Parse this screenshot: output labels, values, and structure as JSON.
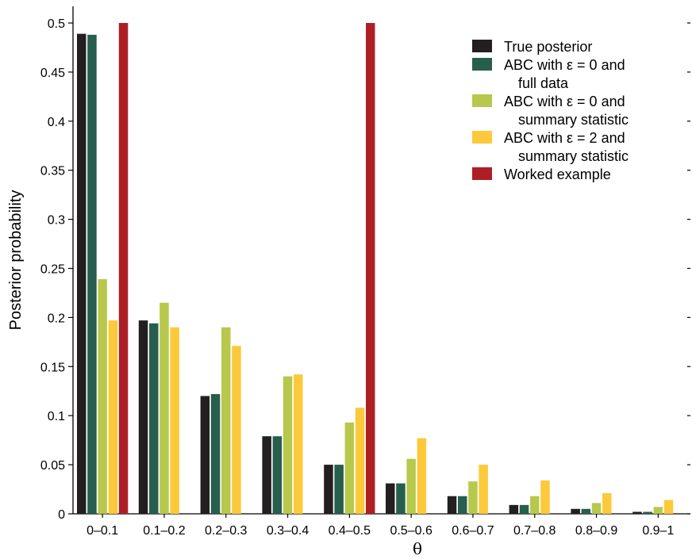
{
  "chart_data": {
    "type": "bar",
    "title": "",
    "xlabel": "θ",
    "ylabel": "Posterior probability",
    "ylim": [
      0,
      0.5
    ],
    "yticks": [
      "0",
      "0.05",
      "0.1",
      "0.15",
      "0.2",
      "0.25",
      "0.3",
      "0.35",
      "0.4",
      "0.45",
      "0.5"
    ],
    "grid": false,
    "legend_position": "top-right",
    "categories": [
      "0–0.1",
      "0.1–0.2",
      "0.2–0.3",
      "0.3–0.4",
      "0.4–0.5",
      "0.5–0.6",
      "0.6–0.7",
      "0.7–0.8",
      "0.8–0.9",
      "0.9–1"
    ],
    "series": [
      {
        "name": "True posterior",
        "color": "#231f20",
        "values": [
          0.489,
          0.197,
          0.12,
          0.079,
          0.05,
          0.031,
          0.018,
          0.009,
          0.005,
          0.002
        ]
      },
      {
        "name": "ABC with ε = 0 and full data",
        "legend_lines": [
          "ABC with ε = 0 and",
          "full data"
        ],
        "color": "#275e4d",
        "values": [
          0.488,
          0.194,
          0.122,
          0.079,
          0.05,
          0.031,
          0.018,
          0.009,
          0.005,
          0.002
        ]
      },
      {
        "name": "ABC with ε = 0 and summary statistic",
        "legend_lines": [
          "ABC with ε = 0 and",
          "summary statistic"
        ],
        "color": "#b7c84d",
        "values": [
          0.239,
          0.215,
          0.19,
          0.14,
          0.093,
          0.056,
          0.033,
          0.018,
          0.011,
          0.007
        ]
      },
      {
        "name": "ABC with ε = 2 and summary statistic",
        "legend_lines": [
          "ABC with ε = 2 and",
          "summary statistic"
        ],
        "color": "#fcc93a",
        "values": [
          0.197,
          0.19,
          0.171,
          0.142,
          0.108,
          0.077,
          0.05,
          0.034,
          0.021,
          0.014
        ]
      },
      {
        "name": "Worked example",
        "color": "#ae1f24",
        "values": [
          0.5,
          0,
          0,
          0,
          0.5,
          0,
          0,
          0,
          0,
          0
        ]
      }
    ]
  }
}
